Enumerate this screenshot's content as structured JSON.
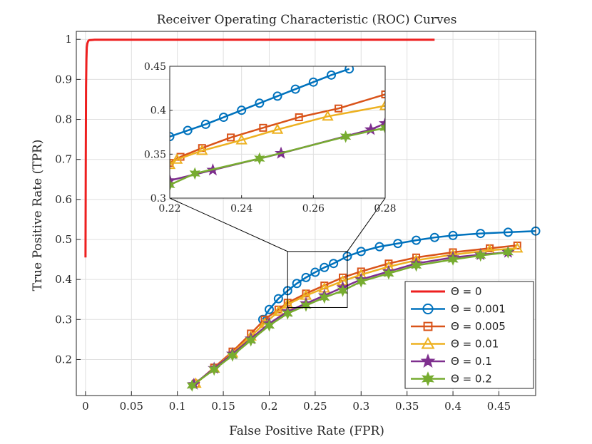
{
  "chart_data": {
    "type": "line",
    "title": "Receiver Operating Characteristic (ROC) Curves",
    "xlabel": "False Positive Rate (FPR)",
    "ylabel": "True Positive Rate (TPR)",
    "xlim": [
      -0.01,
      0.49
    ],
    "ylim": [
      0.11,
      1.02
    ],
    "xticks": [
      "0",
      "0.05",
      "0.1",
      "0.15",
      "0.2",
      "0.25",
      "0.3",
      "0.35",
      "0.4",
      "0.45"
    ],
    "yticks": [
      "0.2",
      "0.3",
      "0.4",
      "0.5",
      "0.6",
      "0.7",
      "0.8",
      "0.9",
      "1"
    ],
    "grid": true,
    "legend_position": "bottom-right",
    "series": [
      {
        "name": "Θ = 0",
        "color": "#ee1f1f",
        "marker": "none",
        "x": [
          0.0,
          0.0003,
          0.0006,
          0.001,
          0.0014,
          0.002,
          0.003,
          0.004,
          0.01,
          0.05,
          0.1,
          0.2,
          0.3,
          0.38
        ],
        "y": [
          0.455,
          0.7,
          0.88,
          0.95,
          0.98,
          0.99,
          0.996,
          0.998,
          0.999,
          0.999,
          0.999,
          0.999,
          0.999,
          0.999
        ]
      },
      {
        "name": "Θ = 0.001",
        "color": "#0072bd",
        "marker": "circle",
        "x": [
          0.193,
          0.2,
          0.21,
          0.22,
          0.23,
          0.24,
          0.25,
          0.26,
          0.27,
          0.285,
          0.3,
          0.32,
          0.34,
          0.36,
          0.38,
          0.4,
          0.43,
          0.46,
          0.49
        ],
        "y": [
          0.3,
          0.325,
          0.352,
          0.372,
          0.39,
          0.405,
          0.418,
          0.43,
          0.44,
          0.458,
          0.47,
          0.482,
          0.49,
          0.498,
          0.505,
          0.51,
          0.515,
          0.518,
          0.521
        ]
      },
      {
        "name": "Θ = 0.005",
        "color": "#d95319",
        "marker": "square",
        "x": [
          0.12,
          0.14,
          0.16,
          0.18,
          0.195,
          0.21,
          0.22,
          0.24,
          0.26,
          0.28,
          0.3,
          0.33,
          0.36,
          0.4,
          0.44,
          0.47
        ],
        "y": [
          0.14,
          0.18,
          0.22,
          0.265,
          0.3,
          0.325,
          0.342,
          0.365,
          0.385,
          0.405,
          0.42,
          0.44,
          0.455,
          0.468,
          0.478,
          0.485
        ]
      },
      {
        "name": "Θ = 0.01",
        "color": "#edb120",
        "marker": "triangle",
        "x": [
          0.12,
          0.14,
          0.16,
          0.18,
          0.195,
          0.21,
          0.22,
          0.24,
          0.26,
          0.28,
          0.3,
          0.33,
          0.36,
          0.4,
          0.44,
          0.47
        ],
        "y": [
          0.14,
          0.178,
          0.216,
          0.258,
          0.29,
          0.32,
          0.338,
          0.36,
          0.378,
          0.396,
          0.412,
          0.432,
          0.448,
          0.462,
          0.473,
          0.478
        ]
      },
      {
        "name": "Θ = 0.1",
        "color": "#7e2f8e",
        "marker": "star",
        "x": [
          0.118,
          0.14,
          0.16,
          0.18,
          0.2,
          0.22,
          0.24,
          0.26,
          0.28,
          0.3,
          0.33,
          0.36,
          0.4,
          0.43,
          0.46
        ],
        "y": [
          0.138,
          0.178,
          0.214,
          0.252,
          0.29,
          0.32,
          0.34,
          0.36,
          0.38,
          0.4,
          0.42,
          0.44,
          0.455,
          0.462,
          0.468
        ]
      },
      {
        "name": "Θ = 0.2",
        "color": "#77ac30",
        "marker": "hexstar",
        "x": [
          0.116,
          0.14,
          0.16,
          0.18,
          0.2,
          0.22,
          0.24,
          0.26,
          0.28,
          0.3,
          0.33,
          0.36,
          0.4,
          0.43,
          0.46
        ],
        "y": [
          0.135,
          0.175,
          0.21,
          0.248,
          0.285,
          0.315,
          0.335,
          0.355,
          0.372,
          0.395,
          0.415,
          0.435,
          0.45,
          0.46,
          0.468
        ]
      }
    ],
    "inset": {
      "xlim": [
        0.22,
        0.28
      ],
      "ylim": [
        0.3,
        0.45
      ],
      "xticks": [
        "0.22",
        "0.24",
        "0.26",
        "0.28"
      ],
      "yticks": [
        "0.3",
        "0.35",
        "0.4",
        "0.45"
      ],
      "zoom_box": {
        "x": [
          0.22,
          0.285
        ],
        "y": [
          0.33,
          0.47
        ]
      },
      "series": [
        {
          "name": "Θ = 0.001",
          "x": [
            0.22,
            0.225,
            0.23,
            0.235,
            0.24,
            0.245,
            0.25,
            0.255,
            0.26,
            0.265,
            0.27
          ],
          "y": [
            0.37,
            0.377,
            0.384,
            0.392,
            0.4,
            0.408,
            0.416,
            0.424,
            0.432,
            0.44,
            0.447
          ]
        },
        {
          "name": "Θ = 0.005",
          "x": [
            0.22,
            0.223,
            0.229,
            0.237,
            0.246,
            0.256,
            0.267,
            0.28
          ],
          "y": [
            0.34,
            0.347,
            0.357,
            0.369,
            0.38,
            0.392,
            0.402,
            0.418
          ]
        },
        {
          "name": "Θ = 0.01",
          "x": [
            0.22,
            0.222,
            0.229,
            0.24,
            0.25,
            0.264,
            0.28
          ],
          "y": [
            0.338,
            0.344,
            0.354,
            0.366,
            0.378,
            0.393,
            0.405
          ]
        },
        {
          "name": "Θ = 0.1",
          "x": [
            0.22,
            0.232,
            0.251,
            0.276,
            0.28
          ],
          "y": [
            0.32,
            0.332,
            0.351,
            0.378,
            0.385
          ]
        },
        {
          "name": "Θ = 0.2",
          "x": [
            0.22,
            0.227,
            0.245,
            0.269,
            0.28
          ],
          "y": [
            0.315,
            0.328,
            0.345,
            0.37,
            0.38
          ]
        }
      ]
    }
  }
}
